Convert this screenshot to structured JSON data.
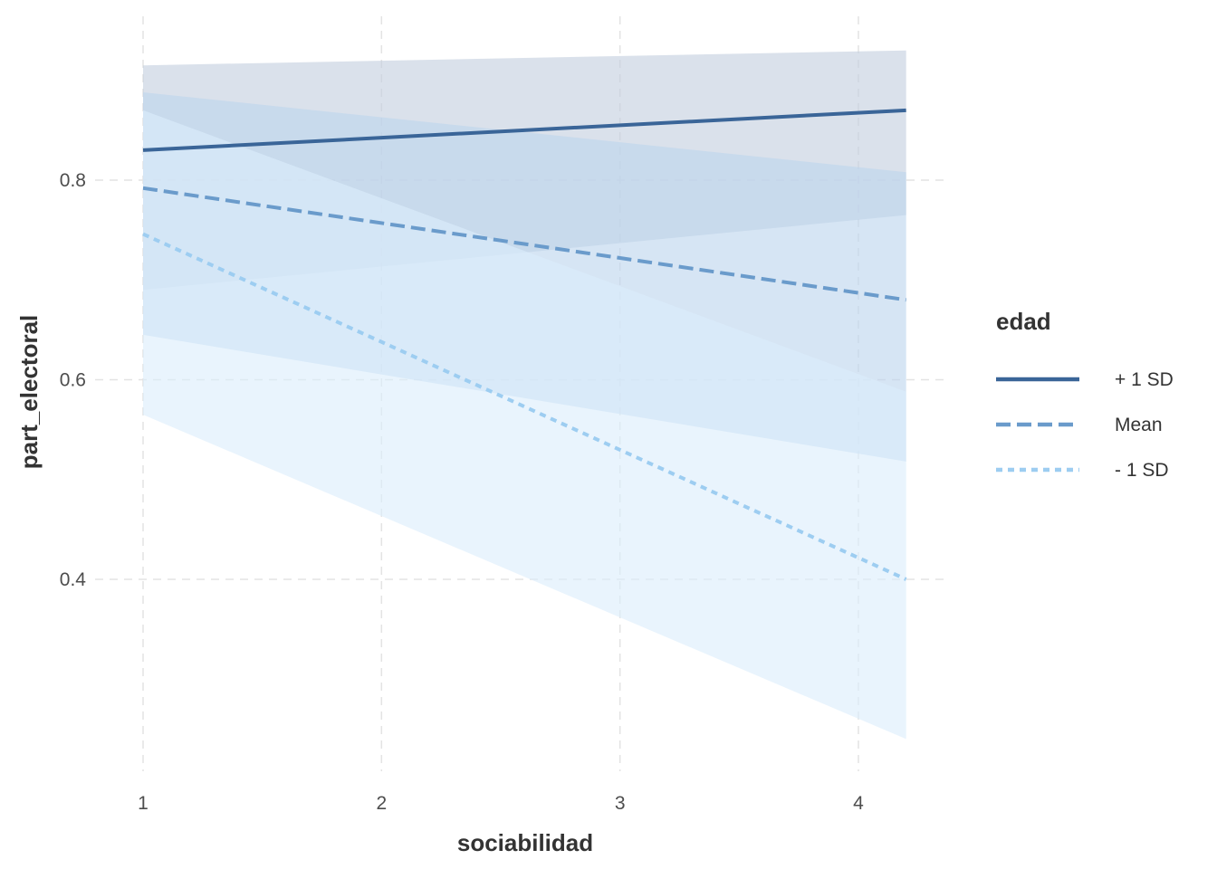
{
  "chart_data": {
    "type": "line",
    "title": "",
    "xlabel": "sociabilidad",
    "ylabel": "part_electoral",
    "xlim": [
      1,
      4.2
    ],
    "ylim": [
      0.22,
      0.94
    ],
    "x_ticks": [
      1,
      2,
      3,
      4
    ],
    "y_ticks": [
      0.4,
      0.6,
      0.8
    ],
    "x_tick_labels": [
      "1",
      "2",
      "3",
      "4"
    ],
    "y_tick_labels": [
      "0.4",
      "0.6",
      "0.8"
    ],
    "grid": true,
    "legend": {
      "title": "edad",
      "position": "right"
    },
    "x": [
      1,
      4.2
    ],
    "series": [
      {
        "name": "+ 1 SD",
        "values": [
          0.83,
          0.87
        ],
        "ci_lower": [
          0.69,
          0.765
        ],
        "ci_upper": [
          0.915,
          0.93
        ],
        "color": "#3A6598",
        "line_style": "solid",
        "fill_color": "#C4CFDE"
      },
      {
        "name": "Mean",
        "values": [
          0.792,
          0.68
        ],
        "ci_lower": [
          0.645,
          0.518
        ],
        "ci_upper": [
          0.888,
          0.808
        ],
        "color": "#6A9BCB",
        "line_style": "dashed",
        "fill_color": "#BDD5EE"
      },
      {
        "name": "- 1 SD",
        "values": [
          0.746,
          0.4
        ],
        "ci_lower": [
          0.565,
          0.24
        ],
        "ci_upper": [
          0.87,
          0.588
        ],
        "color": "#9DCDF1",
        "line_style": "dotted",
        "fill_color": "#DBEDFC"
      }
    ]
  }
}
